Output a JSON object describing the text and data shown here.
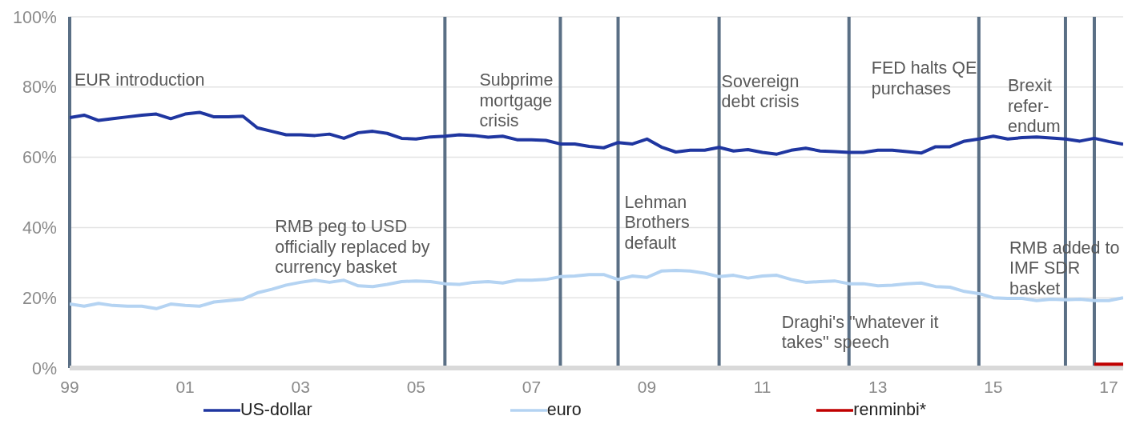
{
  "chart_data": {
    "type": "line",
    "x": [
      1999,
      1999.25,
      1999.5,
      1999.75,
      2000,
      2000.25,
      2000.5,
      2000.75,
      2001,
      2001.25,
      2001.5,
      2001.75,
      2002,
      2002.25,
      2002.5,
      2002.75,
      2003,
      2003.25,
      2003.5,
      2003.75,
      2004,
      2004.25,
      2004.5,
      2004.75,
      2005,
      2005.25,
      2005.5,
      2005.75,
      2006,
      2006.25,
      2006.5,
      2006.75,
      2007,
      2007.25,
      2007.5,
      2007.75,
      2008,
      2008.25,
      2008.5,
      2008.75,
      2009,
      2009.25,
      2009.5,
      2009.75,
      2010,
      2010.25,
      2010.5,
      2010.75,
      2011,
      2011.25,
      2011.5,
      2011.75,
      2012,
      2012.25,
      2012.5,
      2012.75,
      2013,
      2013.25,
      2013.5,
      2013.75,
      2014,
      2014.25,
      2014.5,
      2014.75,
      2015,
      2015.25,
      2015.5,
      2015.75,
      2016,
      2016.25,
      2016.5,
      2016.75,
      2017,
      2017.25
    ],
    "series": [
      {
        "name": "US-dollar",
        "color": "#1f36a0",
        "values": [
          71.3,
          72,
          70.5,
          71,
          71.5,
          72,
          72.3,
          71,
          72.3,
          72.8,
          71.5,
          71.5,
          71.7,
          68.4,
          67.4,
          66.4,
          66.4,
          66.2,
          66.6,
          65.4,
          67,
          67.4,
          66.8,
          65.4,
          65.2,
          65.8,
          66,
          66.4,
          66.2,
          65.7,
          66,
          65,
          65,
          64.8,
          63.8,
          63.8,
          63.1,
          62.7,
          64.2,
          63.8,
          65.2,
          62.9,
          61.5,
          62,
          62,
          62.8,
          61.8,
          62.2,
          61.4,
          60.9,
          62,
          62.6,
          61.8,
          61.6,
          61.4,
          61.4,
          62,
          62,
          61.6,
          61.2,
          63,
          63,
          64.6,
          65.2,
          66,
          65.2,
          65.6,
          65.8,
          65.5,
          65.2,
          64.6,
          65.4,
          64.5,
          63.7
        ]
      },
      {
        "name": "euro",
        "color": "#b4d3f2",
        "values": [
          18.2,
          17.6,
          18.4,
          17.8,
          17.6,
          17.6,
          16.9,
          18.2,
          17.8,
          17.6,
          18.8,
          19.2,
          19.6,
          21.4,
          22.4,
          23.6,
          24.4,
          25,
          24.4,
          25,
          23.4,
          23.2,
          23.8,
          24.6,
          24.8,
          24.6,
          24,
          23.8,
          24.4,
          24.6,
          24.2,
          25,
          25,
          25.2,
          26,
          26.2,
          26.6,
          26.6,
          25.2,
          26.2,
          25.8,
          27.6,
          27.8,
          27.6,
          27,
          26,
          26.4,
          25.6,
          26.2,
          26.4,
          25.2,
          24.4,
          24.6,
          24.8,
          24,
          24,
          23.4,
          23.6,
          24,
          24.2,
          23.2,
          23,
          21.8,
          21.2,
          20,
          19.8,
          19.8,
          19.2,
          19.6,
          19.4,
          19.6,
          19.2,
          19.2,
          20
        ]
      },
      {
        "name": "renminbi*",
        "color": "#c00000",
        "values": [
          null,
          null,
          null,
          null,
          null,
          null,
          null,
          null,
          null,
          null,
          null,
          null,
          null,
          null,
          null,
          null,
          null,
          null,
          null,
          null,
          null,
          null,
          null,
          null,
          null,
          null,
          null,
          null,
          null,
          null,
          null,
          null,
          null,
          null,
          null,
          null,
          null,
          null,
          null,
          null,
          null,
          null,
          null,
          null,
          null,
          null,
          null,
          null,
          null,
          null,
          null,
          null,
          null,
          null,
          null,
          null,
          null,
          null,
          null,
          null,
          null,
          null,
          null,
          null,
          null,
          null,
          null,
          null,
          null,
          null,
          null,
          1.1,
          1.1,
          1.1
        ]
      }
    ],
    "xlim": [
      1999,
      2017.25
    ],
    "xticks": [
      {
        "value": 1999,
        "label": "99"
      },
      {
        "value": 2001,
        "label": "01"
      },
      {
        "value": 2003,
        "label": "03"
      },
      {
        "value": 2005,
        "label": "05"
      },
      {
        "value": 2007,
        "label": "07"
      },
      {
        "value": 2009,
        "label": "09"
      },
      {
        "value": 2011,
        "label": "11"
      },
      {
        "value": 2013,
        "label": "13"
      },
      {
        "value": 2015,
        "label": "15"
      },
      {
        "value": 2017,
        "label": "17"
      }
    ],
    "ylim": [
      0,
      100
    ],
    "yticks": [
      {
        "value": 0,
        "label": "0%"
      },
      {
        "value": 20,
        "label": "20%"
      },
      {
        "value": 40,
        "label": "40%"
      },
      {
        "value": 60,
        "label": "60%"
      },
      {
        "value": 80,
        "label": "80%"
      },
      {
        "value": 100,
        "label": "100%"
      }
    ],
    "grid": "y",
    "legend": "bottom",
    "marker": "none",
    "line_style": "solid",
    "ref_lines": [
      {
        "axis": "x",
        "value": 1999,
        "label": "EUR introduction",
        "color": "#5a6f85"
      },
      {
        "axis": "x",
        "value": 2005.5,
        "label": "RMB peg to USD\nofficially replaced by\ncurrency basket",
        "color": "#5a6f85"
      },
      {
        "axis": "x",
        "value": 2007.5,
        "label": "Subprime\nmortgage\ncrisis",
        "color": "#5a6f85"
      },
      {
        "axis": "x",
        "value": 2008.5,
        "label": "Lehman\nBrothers\ndefault",
        "color": "#5a6f85"
      },
      {
        "axis": "x",
        "value": 2010.25,
        "label": "Sovereign\ndebt crisis",
        "color": "#5a6f85"
      },
      {
        "axis": "x",
        "value": 2012.5,
        "label": "Draghi's \"whatever it\ntakes\" speech",
        "color": "#5a6f85"
      },
      {
        "axis": "x",
        "value": 2014.75,
        "label": "FED halts QE\npurchases",
        "color": "#5a6f85"
      },
      {
        "axis": "x",
        "value": 2016.25,
        "label": "Brexit\nrefer-\nendum",
        "color": "#5a6f85"
      },
      {
        "axis": "x",
        "value": 2016.75,
        "label": "RMB added to\nIMF SDR\nbasket",
        "color": "#5a6f85"
      }
    ]
  }
}
